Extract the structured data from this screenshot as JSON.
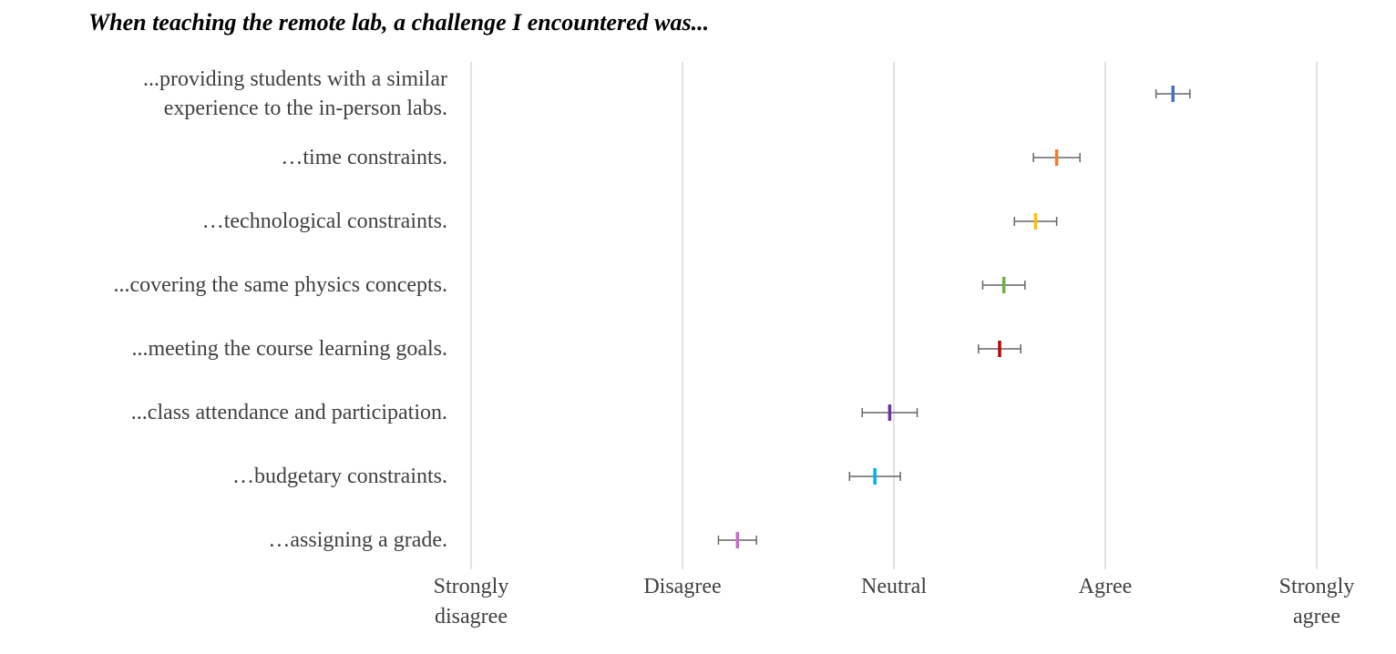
{
  "chart_data": {
    "type": "errorbar",
    "title": "When teaching the remote lab, a challenge I encountered was...",
    "categories": [
      "...providing students with a similar experience to the in-person labs.",
      "…time constraints.",
      "…technological constraints.",
      "...covering the same physics concepts.",
      "...meeting the course learning goals.",
      "...class attendance and participation.",
      "…budgetary constraints.",
      "…assigning a grade."
    ],
    "values": [
      4.32,
      3.77,
      3.67,
      3.52,
      3.5,
      2.98,
      2.91,
      2.26
    ],
    "errors": [
      0.08,
      0.11,
      0.1,
      0.1,
      0.1,
      0.13,
      0.12,
      0.09
    ],
    "colors": [
      "#4472c4",
      "#ed7d31",
      "#ffc000",
      "#70ad47",
      "#c00000",
      "#7030a0",
      "#00b0f0",
      "#cc66cc"
    ],
    "error_color": "#666666",
    "xlim": [
      1,
      5
    ],
    "xticks": [
      {
        "value": 1,
        "label": "Strongly disagree"
      },
      {
        "value": 2,
        "label": "Disagree"
      },
      {
        "value": 3,
        "label": "Neutral"
      },
      {
        "value": 4,
        "label": "Agree"
      },
      {
        "value": 5,
        "label": "Strongly agree"
      }
    ],
    "grid": true
  }
}
